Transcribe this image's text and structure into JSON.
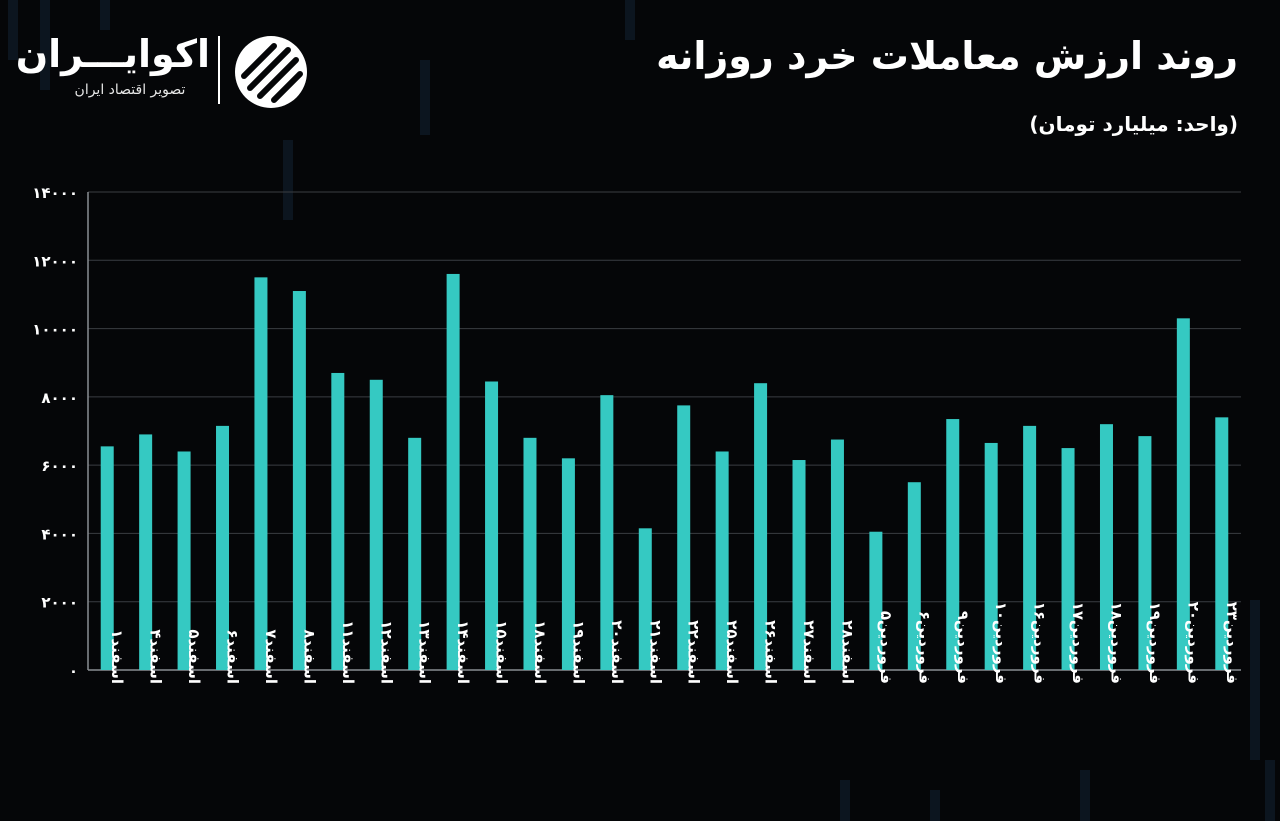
{
  "header": {
    "title": "روند ارزش معاملات خرد روزانه",
    "unit": "(واحد: میلیارد تومان)"
  },
  "logo": {
    "name": "اکوایـــران",
    "tagline": "تصویر اقتصاد ایران"
  },
  "colors": {
    "background": "#050608",
    "bar": "#35c9c2",
    "grid": "#3a3d42",
    "text": "#ffffff"
  },
  "chart_data": {
    "type": "bar",
    "title": "روند ارزش معاملات خرد روزانه",
    "ylabel": "(واحد: میلیارد تومان)",
    "xlabel": "",
    "ylim": [
      0,
      14000
    ],
    "yticks": [
      0,
      2000,
      4000,
      6000,
      8000,
      10000,
      12000,
      14000
    ],
    "ytick_labels": [
      "۰",
      "۲۰۰۰",
      "۴۰۰۰",
      "۶۰۰۰",
      "۸۰۰۰",
      "۱۰۰۰۰",
      "۱۲۰۰۰",
      "۱۴۰۰۰"
    ],
    "grid": true,
    "categories": [
      "اسفند۱",
      "اسفند۴",
      "اسفند۵",
      "اسفند۶",
      "اسفند۷",
      "اسفند۸",
      "اسفند۱۱",
      "اسفند۱۲",
      "اسفند۱۳",
      "اسفند۱۴",
      "اسفند۱۵",
      "اسفند۱۸",
      "اسفند۱۹",
      "اسفند۲۰",
      "اسفند۲۱",
      "اسفند۲۲",
      "اسفند۲۵",
      "اسفند۲۶",
      "اسفند۲۷",
      "اسفند۲۸",
      "فروردین۵",
      "فروردین۶",
      "فروردین۹",
      "فروردین۱۰",
      "فروردین۱۶",
      "فروردین۱۷",
      "فروردین۱۸",
      "فروردین۱۹",
      "فروردین۲۰",
      "فروردین۲۳"
    ],
    "values": [
      6550,
      6900,
      6400,
      7150,
      11500,
      11100,
      8700,
      8500,
      6800,
      11600,
      8450,
      6800,
      6200,
      8050,
      4150,
      7750,
      6400,
      8400,
      6150,
      6750,
      4050,
      5500,
      7350,
      6650,
      7150,
      6500,
      7200,
      6850,
      10300,
      7400
    ]
  }
}
